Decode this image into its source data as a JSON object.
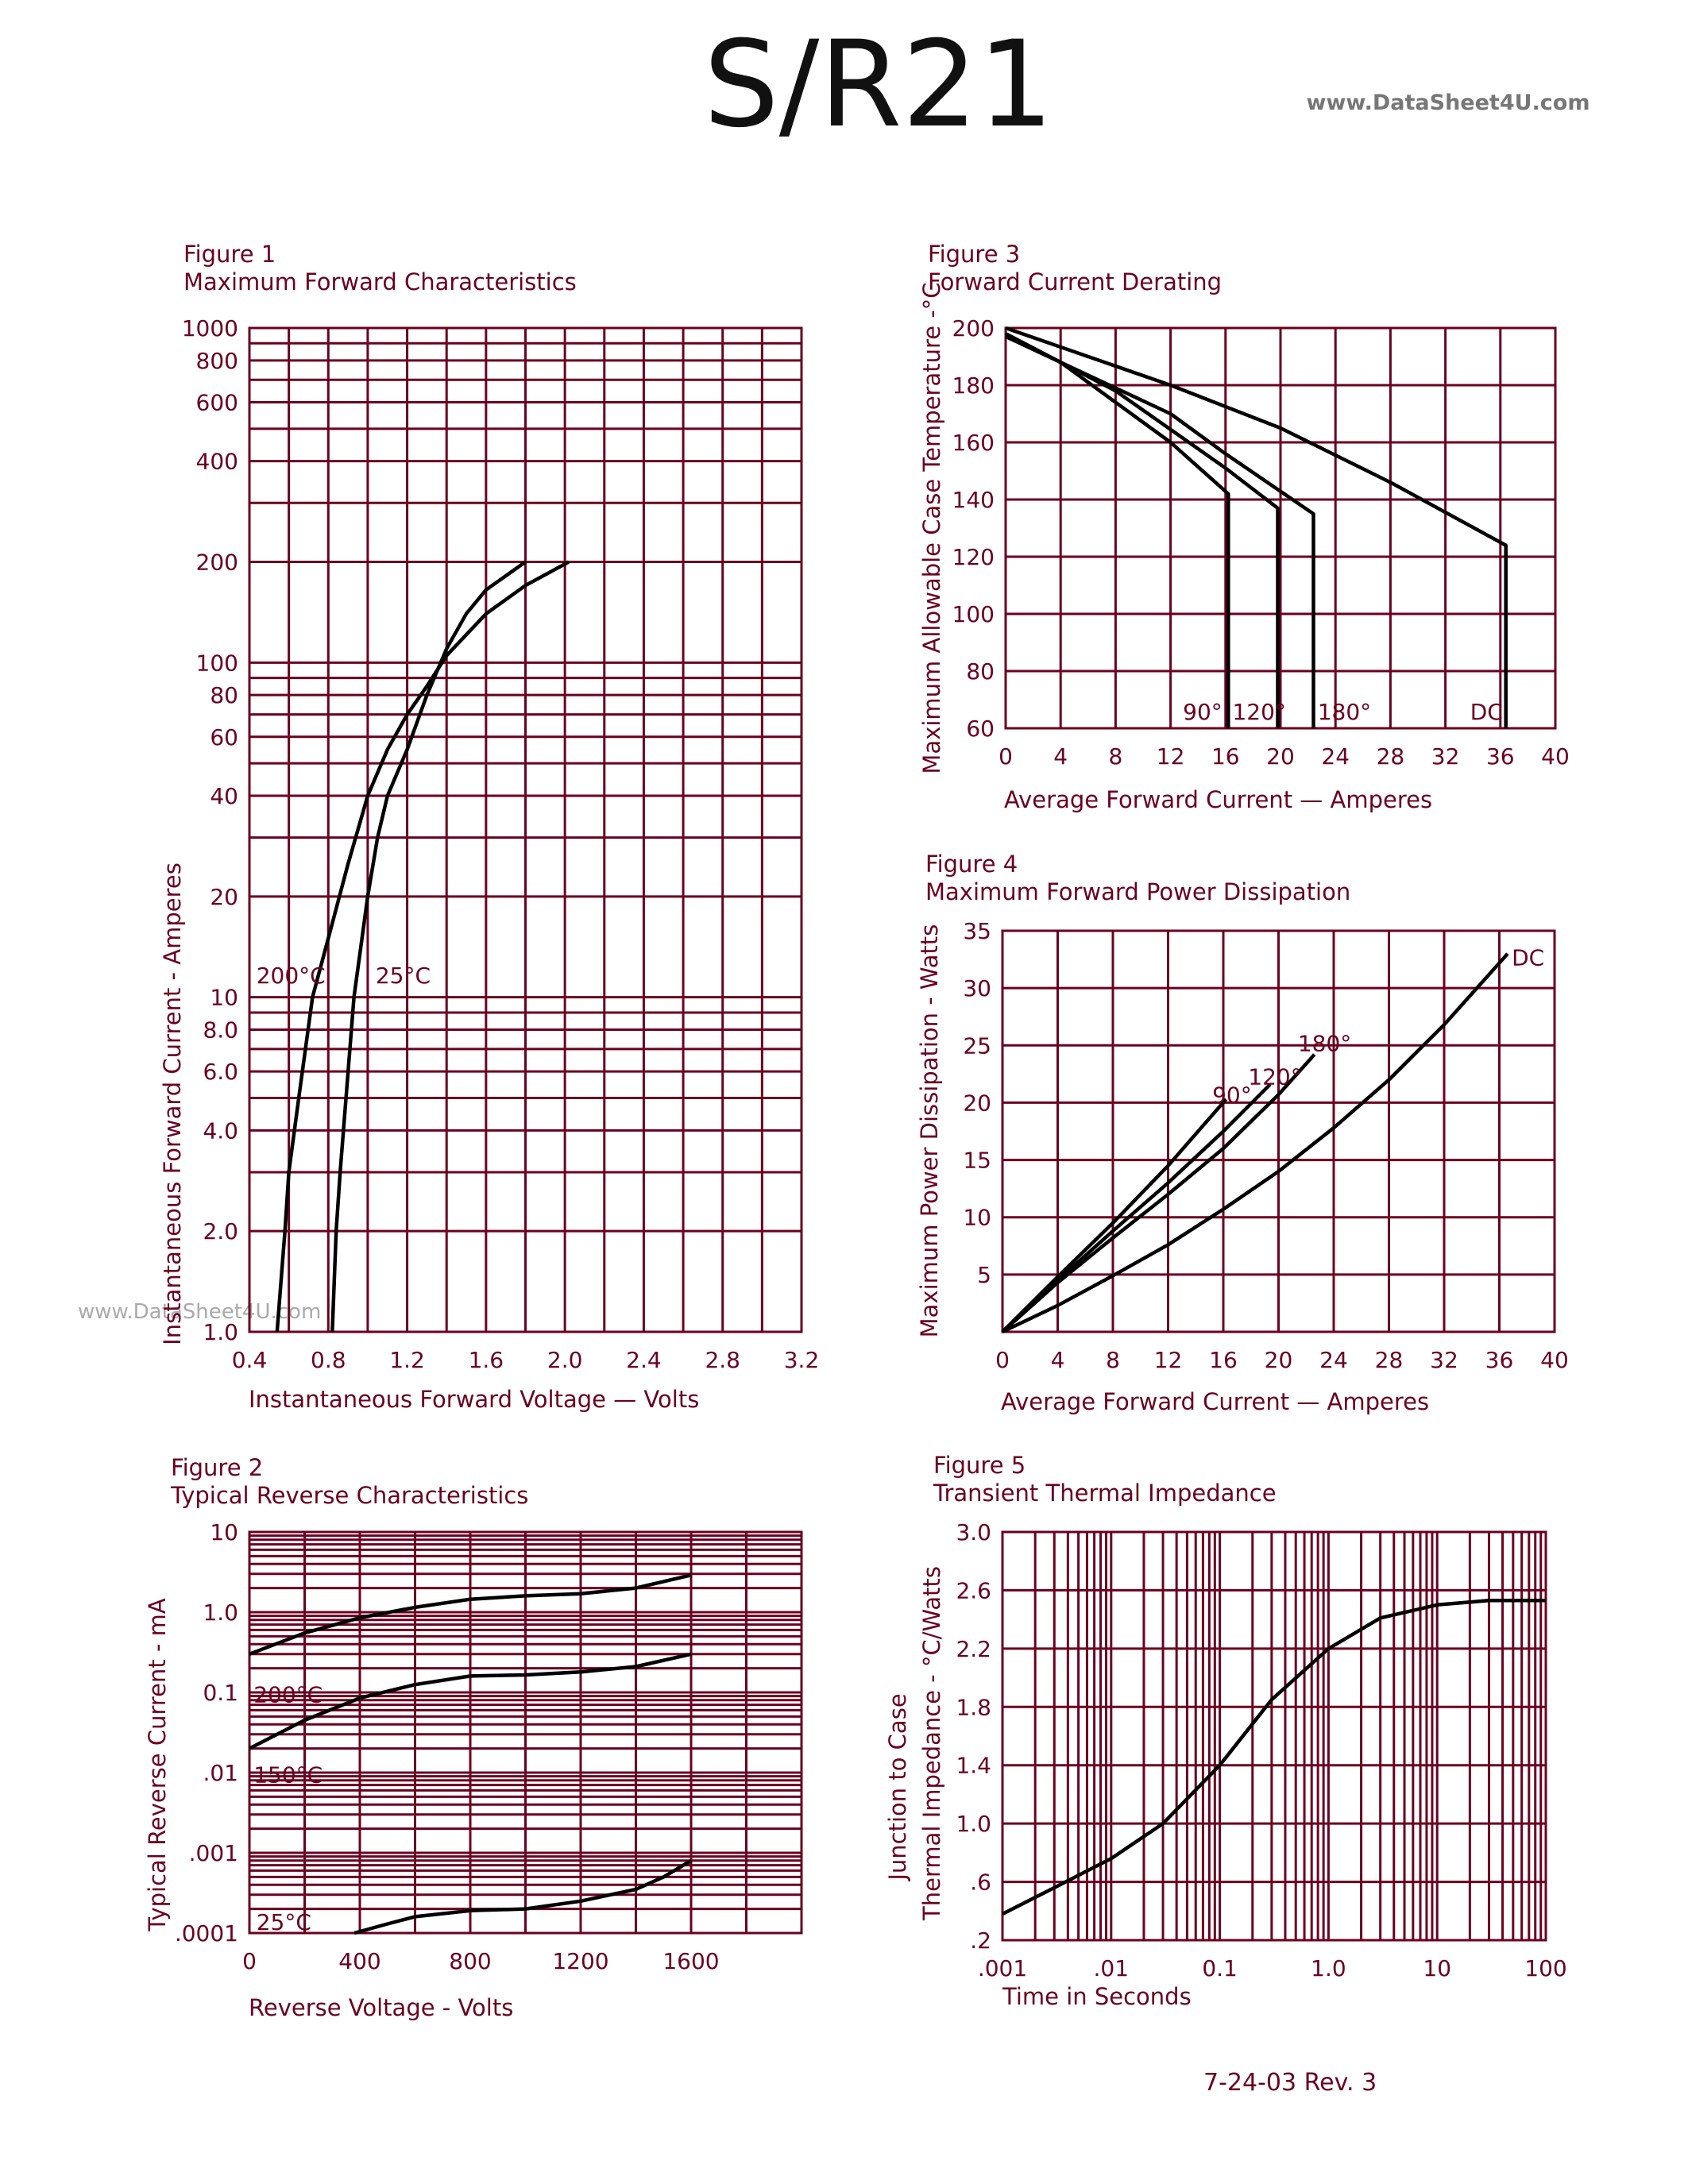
{
  "header": {
    "title": "S/R21",
    "watermark": "www.DataSheet4U.com"
  },
  "side_watermark": "www.DataSheet4U.com",
  "footer": {
    "date_rev": "7-24-03   Rev. 3"
  },
  "colors": {
    "grid": "#6b0020",
    "curve": "#000000",
    "text": "#6b0020"
  },
  "chart_data": [
    {
      "id": "fig1",
      "type": "line",
      "figure": "Figure 1",
      "title": "Maximum Forward Characteristics",
      "xlabel": "Instantaneous Forward Voltage — Volts",
      "ylabel": "Instantaneous Forward Current - Amperes",
      "xlim": [
        0.4,
        3.2
      ],
      "ylim": [
        1,
        1000
      ],
      "yscale": "log",
      "xscale": "linear",
      "grid": true,
      "xticks": [
        {
          "v": 0.4,
          "label": "0.4"
        },
        {
          "v": 0.8,
          "label": "0.8"
        },
        {
          "v": 1.2,
          "label": "1.2"
        },
        {
          "v": 1.6,
          "label": "1.6"
        },
        {
          "v": 2.0,
          "label": "2.0"
        },
        {
          "v": 2.4,
          "label": "2.4"
        },
        {
          "v": 2.8,
          "label": "2.8"
        },
        {
          "v": 3.2,
          "label": "3.2"
        }
      ],
      "yticks": [
        {
          "v": 1,
          "label": "1.0"
        },
        {
          "v": 2,
          "label": "2.0"
        },
        {
          "v": 4,
          "label": "4.0"
        },
        {
          "v": 6,
          "label": "6.0"
        },
        {
          "v": 8,
          "label": "8.0"
        },
        {
          "v": 10,
          "label": "10"
        },
        {
          "v": 20,
          "label": "20"
        },
        {
          "v": 40,
          "label": "40"
        },
        {
          "v": 60,
          "label": "60"
        },
        {
          "v": 80,
          "label": "80"
        },
        {
          "v": 100,
          "label": "100"
        },
        {
          "v": 200,
          "label": "200"
        },
        {
          "v": 400,
          "label": "400"
        },
        {
          "v": 600,
          "label": "600"
        },
        {
          "v": 800,
          "label": "800"
        },
        {
          "v": 1000,
          "label": "1000"
        }
      ],
      "series": [
        {
          "name": "200°C",
          "points": [
            [
              0.54,
              1
            ],
            [
              0.58,
              2
            ],
            [
              0.6,
              3
            ],
            [
              0.65,
              5
            ],
            [
              0.72,
              10
            ],
            [
              0.8,
              15
            ],
            [
              0.9,
              25
            ],
            [
              1.0,
              40
            ],
            [
              1.1,
              55
            ],
            [
              1.2,
              70
            ],
            [
              1.3,
              85
            ],
            [
              1.4,
              105
            ],
            [
              1.6,
              140
            ],
            [
              1.8,
              170
            ],
            [
              2.02,
              200
            ]
          ]
        },
        {
          "name": "25°C",
          "points": [
            [
              0.82,
              1
            ],
            [
              0.84,
              2
            ],
            [
              0.86,
              3
            ],
            [
              0.89,
              5
            ],
            [
              0.93,
              10
            ],
            [
              1.0,
              20
            ],
            [
              1.05,
              30
            ],
            [
              1.1,
              40
            ],
            [
              1.2,
              55
            ],
            [
              1.3,
              80
            ],
            [
              1.4,
              110
            ],
            [
              1.5,
              140
            ],
            [
              1.6,
              165
            ],
            [
              1.8,
              200
            ]
          ]
        }
      ],
      "annotations": [
        {
          "text": "200°C",
          "x": 0.435,
          "y": 11
        },
        {
          "text": "25°C",
          "x": 1.04,
          "y": 11
        }
      ]
    },
    {
      "id": "fig2",
      "type": "line",
      "figure": "Figure 2",
      "title": "Typical Reverse Characteristics",
      "xlabel": "Reverse Voltage - Volts",
      "ylabel": "Typical Reverse Current - mA",
      "xlim": [
        0,
        2000
      ],
      "ylim": [
        0.0001,
        10
      ],
      "yscale": "log",
      "xscale": "linear",
      "grid": true,
      "xticks": [
        {
          "v": 0,
          "label": "0"
        },
        {
          "v": 400,
          "label": "400"
        },
        {
          "v": 800,
          "label": "800"
        },
        {
          "v": 1200,
          "label": "1200"
        },
        {
          "v": 1600,
          "label": "1600"
        }
      ],
      "yticks": [
        {
          "v": 0.0001,
          "label": ".0001"
        },
        {
          "v": 0.001,
          "label": ".001"
        },
        {
          "v": 0.01,
          "label": ".01"
        },
        {
          "v": 0.1,
          "label": "0.1"
        },
        {
          "v": 1,
          "label": "1.0"
        },
        {
          "v": 10,
          "label": "10"
        }
      ],
      "series": [
        {
          "name": "200°C",
          "points": [
            [
              0,
              0.3
            ],
            [
              200,
              0.55
            ],
            [
              400,
              0.85
            ],
            [
              600,
              1.15
            ],
            [
              800,
              1.45
            ],
            [
              1000,
              1.6
            ],
            [
              1200,
              1.7
            ],
            [
              1400,
              2.0
            ],
            [
              1600,
              2.9
            ]
          ]
        },
        {
          "name": "150°C",
          "points": [
            [
              0,
              0.02
            ],
            [
              200,
              0.045
            ],
            [
              400,
              0.085
            ],
            [
              600,
              0.125
            ],
            [
              800,
              0.16
            ],
            [
              1000,
              0.165
            ],
            [
              1200,
              0.18
            ],
            [
              1400,
              0.21
            ],
            [
              1600,
              0.3
            ]
          ]
        },
        {
          "name": "25°C",
          "points": [
            [
              380,
              0.0001
            ],
            [
              500,
              0.00013
            ],
            [
              600,
              0.00016
            ],
            [
              800,
              0.00019
            ],
            [
              1000,
              0.0002
            ],
            [
              1200,
              0.00025
            ],
            [
              1400,
              0.00035
            ],
            [
              1500,
              0.0005
            ],
            [
              1600,
              0.0008
            ]
          ]
        }
      ],
      "annotations": [
        {
          "text": "200°C",
          "x": 15,
          "y": 0.075
        },
        {
          "text": "150°C",
          "x": 15,
          "y": 0.0075
        },
        {
          "text": "25°C",
          "x": 25,
          "y": 0.00011
        }
      ]
    },
    {
      "id": "fig3",
      "type": "line",
      "figure": "Figure 3",
      "title": "Forward Current Derating",
      "xlabel": "Average Forward Current — Amperes",
      "ylabel": "Maximum Allowable Case Temperature -°C",
      "xlim": [
        0,
        40
      ],
      "ylim": [
        60,
        200
      ],
      "yscale": "linear",
      "xscale": "linear",
      "grid": true,
      "xticks": [
        {
          "v": 0,
          "label": "0"
        },
        {
          "v": 4,
          "label": "4"
        },
        {
          "v": 8,
          "label": "8"
        },
        {
          "v": 12,
          "label": "12"
        },
        {
          "v": 16,
          "label": "16"
        },
        {
          "v": 20,
          "label": "20"
        },
        {
          "v": 24,
          "label": "24"
        },
        {
          "v": 28,
          "label": "28"
        },
        {
          "v": 32,
          "label": "32"
        },
        {
          "v": 36,
          "label": "36"
        },
        {
          "v": 40,
          "label": "40"
        }
      ],
      "yticks": [
        {
          "v": 60,
          "label": "60"
        },
        {
          "v": 80,
          "label": "80"
        },
        {
          "v": 100,
          "label": "100"
        },
        {
          "v": 120,
          "label": "120"
        },
        {
          "v": 140,
          "label": "140"
        },
        {
          "v": 160,
          "label": "160"
        },
        {
          "v": 180,
          "label": "180"
        },
        {
          "v": 200,
          "label": "200"
        }
      ],
      "series": [
        {
          "name": "90°",
          "points": [
            [
              0,
              198
            ],
            [
              4,
              188
            ],
            [
              8,
              174
            ],
            [
              12,
              160
            ],
            [
              16.2,
              142
            ],
            [
              16.2,
              60
            ]
          ]
        },
        {
          "name": "120°",
          "points": [
            [
              0,
              198
            ],
            [
              8,
              178
            ],
            [
              16,
              151
            ],
            [
              19.8,
              137
            ],
            [
              19.8,
              60
            ]
          ]
        },
        {
          "name": "180°",
          "points": [
            [
              0,
              197
            ],
            [
              8,
              179
            ],
            [
              12,
              170
            ],
            [
              16,
              156
            ],
            [
              22.4,
              135
            ],
            [
              22.4,
              60
            ]
          ]
        },
        {
          "name": "DC",
          "points": [
            [
              0,
              200
            ],
            [
              12,
              180
            ],
            [
              20,
              165
            ],
            [
              28,
              146
            ],
            [
              36.4,
              124
            ],
            [
              36.4,
              60
            ]
          ]
        }
      ],
      "annotations": [
        {
          "text": "90°",
          "x": 12.9,
          "y": 63
        },
        {
          "text": "120°",
          "x": 16.5,
          "y": 63
        },
        {
          "text": "180°",
          "x": 22.7,
          "y": 63
        },
        {
          "text": "DC",
          "x": 33.8,
          "y": 63
        }
      ]
    },
    {
      "id": "fig4",
      "type": "line",
      "figure": "Figure 4",
      "title": "Maximum Forward Power Dissipation",
      "xlabel": "Average Forward Current — Amperes",
      "ylabel": "Maximum Power Dissipation - Watts",
      "xlim": [
        0,
        40
      ],
      "ylim": [
        0,
        35
      ],
      "yscale": "linear",
      "xscale": "linear",
      "grid": true,
      "xticks": [
        {
          "v": 0,
          "label": "0"
        },
        {
          "v": 4,
          "label": "4"
        },
        {
          "v": 8,
          "label": "8"
        },
        {
          "v": 12,
          "label": "12"
        },
        {
          "v": 16,
          "label": "16"
        },
        {
          "v": 20,
          "label": "20"
        },
        {
          "v": 24,
          "label": "24"
        },
        {
          "v": 28,
          "label": "28"
        },
        {
          "v": 32,
          "label": "32"
        },
        {
          "v": 36,
          "label": "36"
        },
        {
          "v": 40,
          "label": "40"
        }
      ],
      "yticks": [
        {
          "v": 5,
          "label": "5"
        },
        {
          "v": 10,
          "label": "10"
        },
        {
          "v": 15,
          "label": "15"
        },
        {
          "v": 20,
          "label": "20"
        },
        {
          "v": 25,
          "label": "25"
        },
        {
          "v": 30,
          "label": "30"
        },
        {
          "v": 35,
          "label": "35"
        }
      ],
      "series": [
        {
          "name": "90°",
          "points": [
            [
              0,
              0
            ],
            [
              4,
              4.8
            ],
            [
              8,
              9.5
            ],
            [
              12,
              14.5
            ],
            [
              16.2,
              20.3
            ]
          ]
        },
        {
          "name": "120°",
          "points": [
            [
              0,
              0
            ],
            [
              4,
              4.5
            ],
            [
              8,
              8.8
            ],
            [
              12,
              13
            ],
            [
              16,
              17.5
            ],
            [
              19.4,
              21.6
            ]
          ]
        },
        {
          "name": "180°",
          "points": [
            [
              0,
              0
            ],
            [
              4,
              4.3
            ],
            [
              8,
              8.2
            ],
            [
              12,
              12
            ],
            [
              16,
              16
            ],
            [
              20,
              20.7
            ],
            [
              22.6,
              24.2
            ]
          ]
        },
        {
          "name": "DC",
          "points": [
            [
              0,
              0
            ],
            [
              4,
              2.3
            ],
            [
              8,
              4.9
            ],
            [
              12,
              7.6
            ],
            [
              16,
              10.7
            ],
            [
              20,
              14
            ],
            [
              24,
              17.8
            ],
            [
              28,
              22
            ],
            [
              32,
              26.8
            ],
            [
              36.6,
              33
            ]
          ]
        }
      ],
      "annotations": [
        {
          "text": "90°",
          "x": 15.2,
          "y": 20
        },
        {
          "text": "120°",
          "x": 17.8,
          "y": 21.6
        },
        {
          "text": "180°",
          "x": 21.4,
          "y": 24.5
        },
        {
          "text": "DC",
          "x": 36.9,
          "y": 32
        }
      ]
    },
    {
      "id": "fig5",
      "type": "line",
      "figure": "Figure 5",
      "title": "Transient Thermal Impedance",
      "xlabel": "Time in Seconds",
      "ylabel": "Junction to Case",
      "ylabel2": "Thermal Impedance - °C/Watts",
      "xlim": [
        0.001,
        100
      ],
      "ylim": [
        0.2,
        3.0
      ],
      "xscale": "log",
      "yscale": "linear",
      "grid": true,
      "xticks": [
        {
          "v": 0.001,
          "label": ".001"
        },
        {
          "v": 0.01,
          "label": ".01"
        },
        {
          "v": 0.1,
          "label": "0.1"
        },
        {
          "v": 1,
          "label": "1.0"
        },
        {
          "v": 10,
          "label": "10"
        },
        {
          "v": 100,
          "label": "100"
        }
      ],
      "yticks": [
        {
          "v": 0.2,
          "label": ".2"
        },
        {
          "v": 0.6,
          "label": ".6"
        },
        {
          "v": 1.0,
          "label": "1.0"
        },
        {
          "v": 1.4,
          "label": "1.4"
        },
        {
          "v": 1.8,
          "label": "1.8"
        },
        {
          "v": 2.2,
          "label": "2.2"
        },
        {
          "v": 2.6,
          "label": "2.6"
        },
        {
          "v": 3.0,
          "label": "3.0"
        }
      ],
      "series": [
        {
          "points": [
            [
              0.001,
              0.38
            ],
            [
              0.003,
              0.56
            ],
            [
              0.01,
              0.76
            ],
            [
              0.03,
              1.0
            ],
            [
              0.1,
              1.4
            ],
            [
              0.3,
              1.85
            ],
            [
              1,
              2.2
            ],
            [
              3,
              2.41
            ],
            [
              10,
              2.5
            ],
            [
              30,
              2.53
            ],
            [
              100,
              2.53
            ]
          ]
        }
      ],
      "annotations": []
    }
  ]
}
